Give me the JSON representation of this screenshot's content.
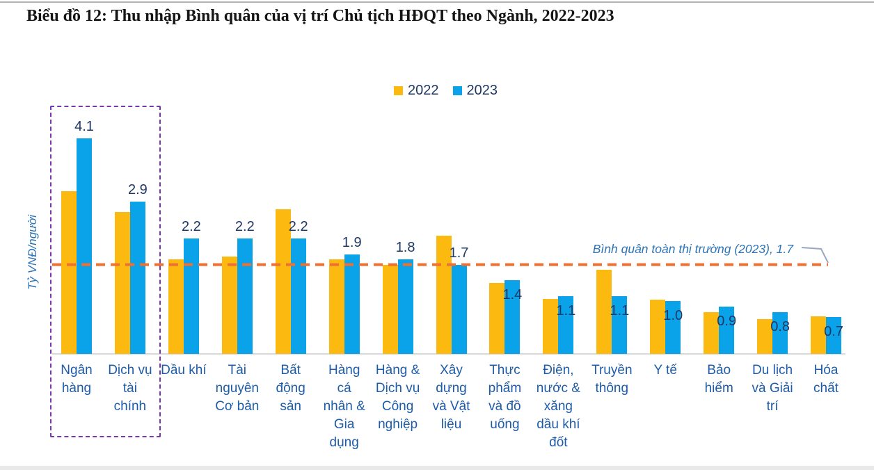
{
  "title": "Biểu đồ 12: Thu nhập Bình quân của vị trí Chủ tịch HĐQT theo Ngành, 2022-2023",
  "y_axis_label": "Tỷ VNĐ/người",
  "legend": {
    "items": [
      {
        "label": "2022",
        "color": "#fcb90f"
      },
      {
        "label": "2023",
        "color": "#0aa2e9"
      }
    ]
  },
  "chart_data": {
    "type": "bar",
    "categories": [
      "Ngân\nhàng",
      "Dịch vụ\ntài\nchính",
      "Dầu khí",
      "Tài\nnguyên\nCơ bản",
      "Bất\nđộng\nsản",
      "Hàng\ncá\nnhân &\nGia\ndụng",
      "Hàng &\nDịch vụ\nCông\nnghiệp",
      "Xây\ndựng\nvà Vật\nliệu",
      "Thực\nphẩm\nvà đồ\nuống",
      "Điện,\nnước &\nxăng\ndầu khí\nđốt",
      "Truyền\nthông",
      "Y tế",
      "Bảo\nhiểm",
      "Du lịch\nvà Giải\ntrí",
      "Hóa\nchất"
    ],
    "series": [
      {
        "name": "2022",
        "color": "#fcb90f",
        "values": [
          3.1,
          2.7,
          1.8,
          1.85,
          2.75,
          1.8,
          1.7,
          2.25,
          1.35,
          1.05,
          1.6,
          1.03,
          0.8,
          0.66,
          0.72
        ],
        "labels_shown": false
      },
      {
        "name": "2023",
        "color": "#0aa2e9",
        "values": [
          4.1,
          2.9,
          2.2,
          2.2,
          2.2,
          1.9,
          1.8,
          1.7,
          1.4,
          1.1,
          1.1,
          1.0,
          0.9,
          0.8,
          0.7
        ],
        "labels_shown": true,
        "data_labels": [
          "4.1",
          "2.9",
          "2.2",
          "2.2",
          "2.2",
          "1.9",
          "1.8",
          "1.7",
          "1.4",
          "1.1",
          "1.1",
          "1.0",
          "0.9",
          "0.8",
          "0.7"
        ]
      }
    ],
    "ylabel": "Tỷ VNĐ/người",
    "ylim": [
      0,
      4.5
    ],
    "grid": false,
    "legend_position": "top-center",
    "average_line": {
      "value": 1.7,
      "label": "Bình quân toàn thị trường (2023),  1.7",
      "color": "#ee7032",
      "style": "dashed"
    },
    "highlight_box": {
      "categories": [
        "Ngân hàng",
        "Dịch vụ tài chính"
      ],
      "color": "#7a36b1",
      "style": "dashed"
    }
  },
  "colors": {
    "bar_2022": "#fcb90f",
    "bar_2023": "#0aa2e9",
    "average_line": "#ee7032",
    "highlight_box": "#7a36b1",
    "category_labels": "#1e5ca8",
    "value_labels": "#1f3864",
    "axis_line": "#d9d9d9",
    "annotation_text": "#2e74b5"
  }
}
